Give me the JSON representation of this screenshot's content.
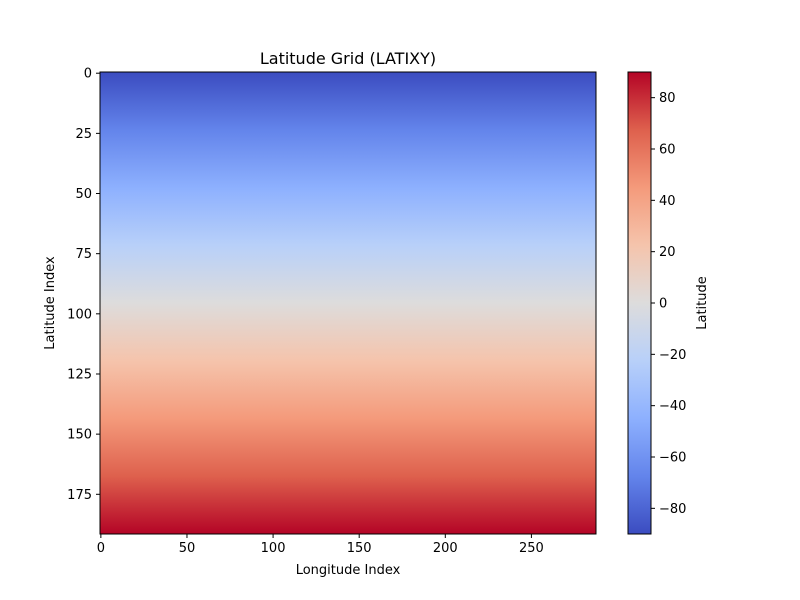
{
  "chart_data": {
    "type": "heatmap",
    "title": "Latitude Grid (LATIXY)",
    "xlabel": "Longitude Index",
    "ylabel": "Latitude Index",
    "colorbar_label": "Latitude",
    "colormap": "coolwarm",
    "grid": false,
    "grid_shape": {
      "rows": 192,
      "cols": 288
    },
    "xlim": [
      -0.5,
      287.5
    ],
    "ylim": [
      191.5,
      -0.5
    ],
    "x_ticks": [
      0,
      50,
      100,
      150,
      200,
      250
    ],
    "y_ticks": [
      0,
      25,
      50,
      75,
      100,
      125,
      150,
      175
    ],
    "colorbar_range": [
      -90,
      90
    ],
    "colorbar_ticks": [
      -80,
      -60,
      -40,
      -20,
      0,
      20,
      40,
      60,
      80
    ],
    "values_description_rows": {
      "row_index_start": 0,
      "row_index_end": 191,
      "latitude_start": -90,
      "latitude_end": 90
    },
    "colormap_stops": [
      "#3b4cc0",
      "#6384eb",
      "#8db0fe",
      "#b8d0f9",
      "#dddcdc",
      "#f5c4ac",
      "#f49a7b",
      "#de604d",
      "#b40426"
    ]
  }
}
